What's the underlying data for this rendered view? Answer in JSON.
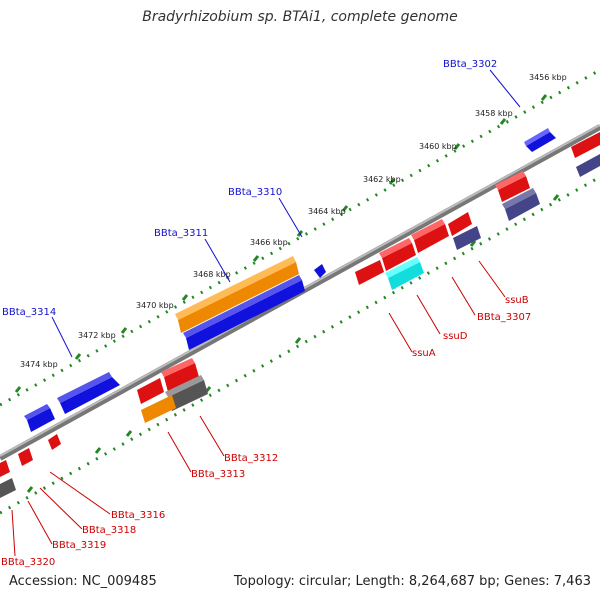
{
  "title": "Bradyrhizobium sp. BTAi1, complete genome",
  "accession": "Accession: NC_009485",
  "summary": "Topology: circular; Length: 8,264,687 bp; Genes: 7,463",
  "colors": {
    "backbone": "#888888",
    "tick_dots": "#228822",
    "blue_gene": "#1111dd",
    "orange_gene": "#ee8800",
    "red_gene": "#dd1111",
    "gray_gene": "#555555",
    "slate_gene": "#444488",
    "cyan_gene": "#11dddd",
    "upper_label": "#1111cc",
    "lower_label": "#cc0000"
  },
  "ruler_labels": [
    "3456 kbp",
    "3458 kbp",
    "3460 kbp",
    "3462 kbp",
    "3464 kbp",
    "3466 kbp",
    "3468 kbp",
    "3470 kbp",
    "3472 kbp",
    "3474 kbp"
  ],
  "upper_gene_labels": [
    "BBta_3302",
    "BBta_3310",
    "BBta_3311",
    "BBta_3314"
  ],
  "lower_gene_labels": [
    "ssuB",
    "BBta_3307",
    "ssuD",
    "ssuA",
    "BBta_3312",
    "BBta_3313",
    "BBta_3316",
    "BBta_3318",
    "BBta_3319",
    "BBta_3320"
  ]
}
